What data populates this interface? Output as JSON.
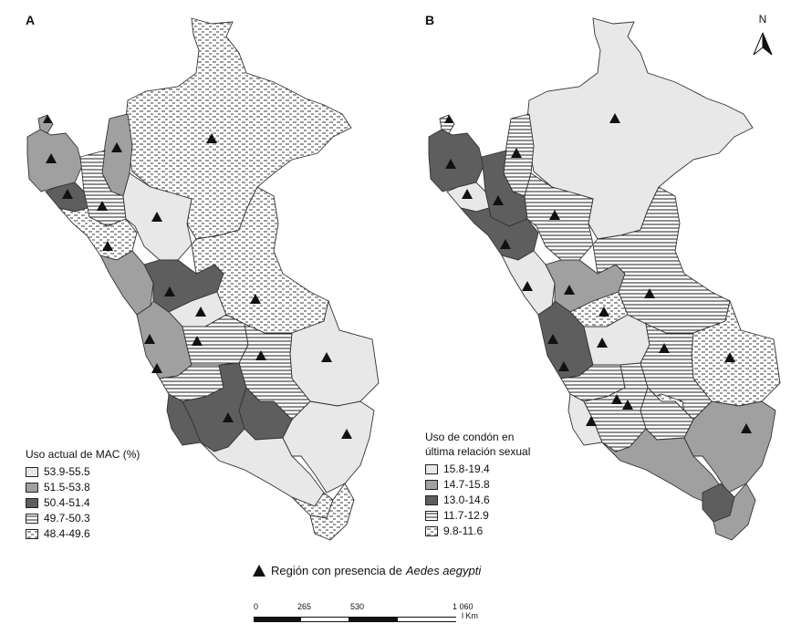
{
  "panel_a": {
    "letter": "A",
    "legend_title": "Uso actual de MAC (%)",
    "classes": [
      {
        "label": "53.9-55.5",
        "fill": "#e8e8e8"
      },
      {
        "label": "51.5-53.8",
        "fill": "#a0a0a0"
      },
      {
        "label": "50.4-51.4",
        "fill": "#5e5e5e"
      },
      {
        "label": "49.7-50.3",
        "fill": "pattern-hlines"
      },
      {
        "label": "48.4-49.6",
        "fill": "pattern-dashes"
      }
    ]
  },
  "panel_b": {
    "letter": "B",
    "legend_title_line1": "Uso de condón en",
    "legend_title_line2": "última relación sexual",
    "classes": [
      {
        "label": "15.8-19.4",
        "fill": "#e8e8e8"
      },
      {
        "label": "14.7-15.8",
        "fill": "#a0a0a0"
      },
      {
        "label": "13.0-14.6",
        "fill": "#5e5e5e"
      },
      {
        "label": "11.7-12.9",
        "fill": "pattern-hlines"
      },
      {
        "label": "9.8-11.6",
        "fill": "pattern-dashes"
      }
    ]
  },
  "caption": {
    "text": "Región con presencia de",
    "species": "Aedes aegypti"
  },
  "north_label": "N",
  "scale": {
    "ticks": [
      "0",
      "265",
      "530",
      "1 060"
    ],
    "unit": "Km"
  }
}
